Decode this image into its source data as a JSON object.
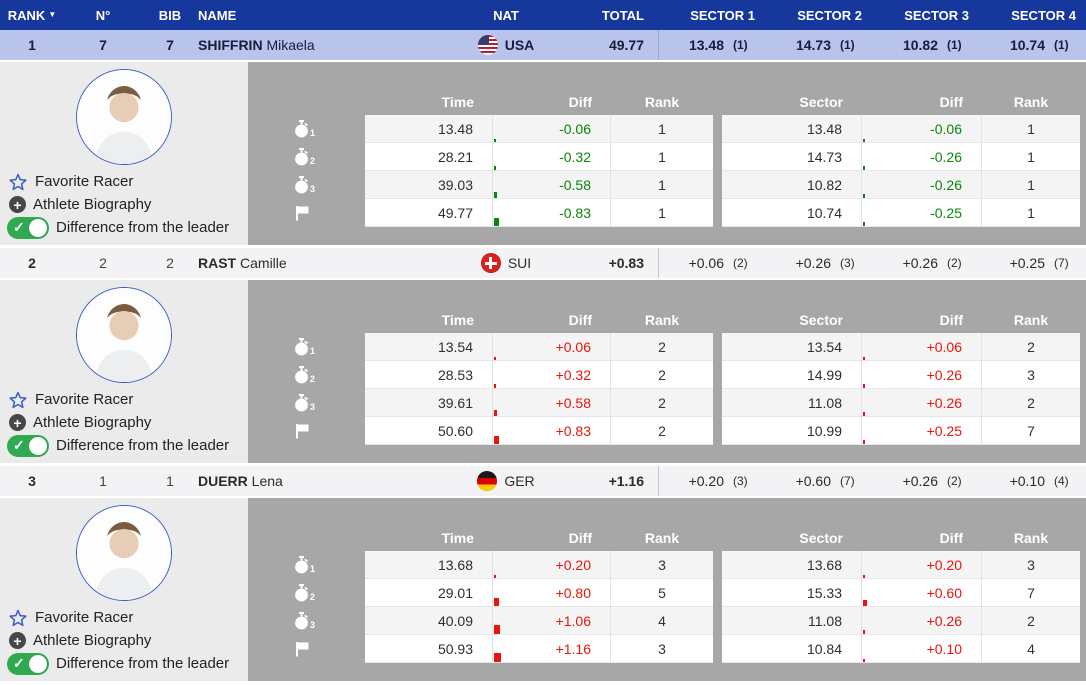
{
  "header": {
    "rank": "RANK",
    "sort_indicator": "▼",
    "number": "N°",
    "bib": "BIB",
    "name": "NAME",
    "nat": "NAT",
    "total": "TOTAL",
    "sectors": [
      "SECTOR 1",
      "SECTOR 2",
      "SECTOR 3",
      "SECTOR 4"
    ]
  },
  "detail_headers": {
    "time": "Time",
    "diff": "Diff",
    "rank": "Rank",
    "sector": "Sector"
  },
  "sidebar": {
    "favorite_label": "Favorite Racer",
    "bio_label": "Athlete Biography",
    "toggle_label": "Difference from the leader"
  },
  "icons": {
    "intermediate_1": "1",
    "intermediate_2": "2",
    "intermediate_3": "3"
  },
  "colors": {
    "header_bg": "#16389c",
    "leader_row_bg": "#b8c4ec",
    "row_bg": "#f3f3f5",
    "panel_bg": "#a7a7a7",
    "sidebar_bg": "#ebebeb",
    "diff_negative": "#0a860a",
    "diff_positive": "#e8150d",
    "star_blue": "#3a5cc5",
    "toggle_green": "#2faa50"
  },
  "racers": [
    {
      "rank": "1",
      "number": "7",
      "bib": "7",
      "last_name": "SHIFFRIN",
      "first_name": "Mikaela",
      "nat": "USA",
      "flag": "usa",
      "total": "49.77",
      "sectors": [
        {
          "v": "13.48",
          "r": "(1)"
        },
        {
          "v": "14.73",
          "r": "(1)"
        },
        {
          "v": "10.82",
          "r": "(1)"
        },
        {
          "v": "10.74",
          "r": "(1)"
        }
      ],
      "runs": [
        {
          "time": "13.48",
          "tdiff": "-0.06",
          "trank": "1",
          "sector": "13.48",
          "sdiff": "-0.06",
          "srank": "1"
        },
        {
          "time": "28.21",
          "tdiff": "-0.32",
          "trank": "1",
          "sector": "14.73",
          "sdiff": "-0.26",
          "srank": "1"
        },
        {
          "time": "39.03",
          "tdiff": "-0.58",
          "trank": "1",
          "sector": "10.82",
          "sdiff": "-0.26",
          "srank": "1"
        },
        {
          "time": "49.77",
          "tdiff": "-0.83",
          "trank": "1",
          "sector": "10.74",
          "sdiff": "-0.25",
          "srank": "1"
        }
      ]
    },
    {
      "rank": "2",
      "number": "2",
      "bib": "2",
      "last_name": "RAST",
      "first_name": "Camille",
      "nat": "SUI",
      "flag": "sui",
      "total": "+0.83",
      "sectors": [
        {
          "v": "+0.06",
          "r": "(2)"
        },
        {
          "v": "+0.26",
          "r": "(3)"
        },
        {
          "v": "+0.26",
          "r": "(2)"
        },
        {
          "v": "+0.25",
          "r": "(7)"
        }
      ],
      "runs": [
        {
          "time": "13.54",
          "tdiff": "+0.06",
          "trank": "2",
          "sector": "13.54",
          "sdiff": "+0.06",
          "srank": "2"
        },
        {
          "time": "28.53",
          "tdiff": "+0.32",
          "trank": "2",
          "sector": "14.99",
          "sdiff": "+0.26",
          "srank": "3"
        },
        {
          "time": "39.61",
          "tdiff": "+0.58",
          "trank": "2",
          "sector": "11.08",
          "sdiff": "+0.26",
          "srank": "2"
        },
        {
          "time": "50.60",
          "tdiff": "+0.83",
          "trank": "2",
          "sector": "10.99",
          "sdiff": "+0.25",
          "srank": "7"
        }
      ]
    },
    {
      "rank": "3",
      "number": "1",
      "bib": "1",
      "last_name": "DUERR",
      "first_name": "Lena",
      "nat": "GER",
      "flag": "ger",
      "total": "+1.16",
      "sectors": [
        {
          "v": "+0.20",
          "r": "(3)"
        },
        {
          "v": "+0.60",
          "r": "(7)"
        },
        {
          "v": "+0.26",
          "r": "(2)"
        },
        {
          "v": "+0.10",
          "r": "(4)"
        }
      ],
      "runs": [
        {
          "time": "13.68",
          "tdiff": "+0.20",
          "trank": "3",
          "sector": "13.68",
          "sdiff": "+0.20",
          "srank": "3"
        },
        {
          "time": "29.01",
          "tdiff": "+0.80",
          "trank": "5",
          "sector": "15.33",
          "sdiff": "+0.60",
          "srank": "7"
        },
        {
          "time": "40.09",
          "tdiff": "+1.06",
          "trank": "4",
          "sector": "11.08",
          "sdiff": "+0.26",
          "srank": "2"
        },
        {
          "time": "50.93",
          "tdiff": "+1.16",
          "trank": "3",
          "sector": "10.84",
          "sdiff": "+0.10",
          "srank": "4"
        }
      ]
    }
  ]
}
